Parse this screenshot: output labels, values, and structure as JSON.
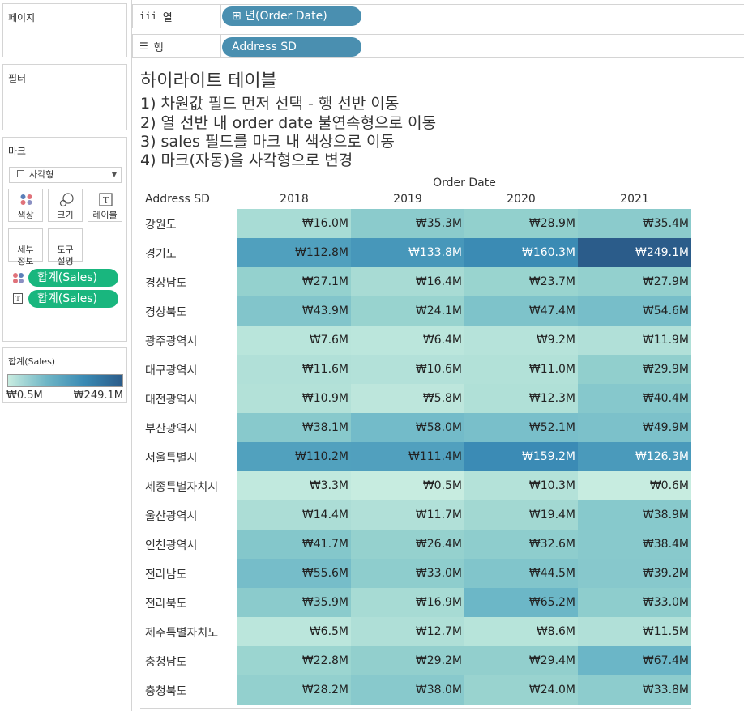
{
  "sidebar": {
    "pages_title": "페이지",
    "filters_title": "필터",
    "marks_title": "마크",
    "mark_type": "사각형",
    "mark_buttons": [
      {
        "label": "색상",
        "icon": "color-dots-icon"
      },
      {
        "label": "크기",
        "icon": "size-circles-icon"
      },
      {
        "label": "레이블",
        "icon": "text-label-icon"
      },
      {
        "label": "세부\n정보",
        "icon": "detail-icon"
      },
      {
        "label": "도구\n설명",
        "icon": "tooltip-icon"
      }
    ],
    "mark_fields": [
      {
        "icon": "color-dots-icon",
        "label": "합계(Sales)"
      },
      {
        "icon": "text-T-icon",
        "label": "합계(Sales)"
      }
    ],
    "legend": {
      "title": "합계(Sales)",
      "min_label": "₩0.5M",
      "max_label": "₩249.1M",
      "color_low": "#c8ece0",
      "color_high": "#2b5c8a"
    }
  },
  "shelves": {
    "columns_label": "열",
    "columns_icon": "iii",
    "columns_pill": "⊞ 년(Order Date)",
    "rows_label": "행",
    "rows_icon": "☰",
    "rows_pill": "Address SD"
  },
  "view": {
    "title": "하이라이트 테이블",
    "instructions": [
      "1) 차원값 필드 먼저 선택 - 행 선반 이동",
      "2) 열 선반 내 order date 불연속형으로 이동",
      "3) sales 필드를 마크 내 색상으로 이동",
      "4) 마크(자동)을 사각형으로 변경"
    ],
    "column_header": "Order Date",
    "row_header": "Address SD",
    "years": [
      "2018",
      "2019",
      "2020",
      "2021"
    ],
    "rows": [
      {
        "region": "강원도",
        "values": [
          16.0,
          35.3,
          28.9,
          35.4
        ],
        "labels": [
          "₩16.0M",
          "₩35.3M",
          "₩28.9M",
          "₩35.4M"
        ]
      },
      {
        "region": "경기도",
        "values": [
          112.8,
          133.8,
          160.3,
          249.1
        ],
        "labels": [
          "₩112.8M",
          "₩133.8M",
          "₩160.3M",
          "₩249.1M"
        ]
      },
      {
        "region": "경상남도",
        "values": [
          27.1,
          16.4,
          23.7,
          27.9
        ],
        "labels": [
          "₩27.1M",
          "₩16.4M",
          "₩23.7M",
          "₩27.9M"
        ]
      },
      {
        "region": "경상북도",
        "values": [
          43.9,
          24.1,
          47.4,
          54.6
        ],
        "labels": [
          "₩43.9M",
          "₩24.1M",
          "₩47.4M",
          "₩54.6M"
        ]
      },
      {
        "region": "광주광역시",
        "values": [
          7.6,
          6.4,
          9.2,
          11.9
        ],
        "labels": [
          "₩7.6M",
          "₩6.4M",
          "₩9.2M",
          "₩11.9M"
        ]
      },
      {
        "region": "대구광역시",
        "values": [
          11.6,
          10.6,
          11.0,
          29.9
        ],
        "labels": [
          "₩11.6M",
          "₩10.6M",
          "₩11.0M",
          "₩29.9M"
        ]
      },
      {
        "region": "대전광역시",
        "values": [
          10.9,
          5.8,
          12.3,
          40.4
        ],
        "labels": [
          "₩10.9M",
          "₩5.8M",
          "₩12.3M",
          "₩40.4M"
        ]
      },
      {
        "region": "부산광역시",
        "values": [
          38.1,
          58.0,
          52.1,
          49.9
        ],
        "labels": [
          "₩38.1M",
          "₩58.0M",
          "₩52.1M",
          "₩49.9M"
        ]
      },
      {
        "region": "서울특별시",
        "values": [
          110.2,
          111.4,
          159.2,
          126.3
        ],
        "labels": [
          "₩110.2M",
          "₩111.4M",
          "₩159.2M",
          "₩126.3M"
        ]
      },
      {
        "region": "세종특별자치시",
        "values": [
          3.3,
          0.5,
          10.3,
          0.6
        ],
        "labels": [
          "₩3.3M",
          "₩0.5M",
          "₩10.3M",
          "₩0.6M"
        ]
      },
      {
        "region": "울산광역시",
        "values": [
          14.4,
          11.7,
          19.4,
          38.9
        ],
        "labels": [
          "₩14.4M",
          "₩11.7M",
          "₩19.4M",
          "₩38.9M"
        ]
      },
      {
        "region": "인천광역시",
        "values": [
          41.7,
          26.4,
          32.6,
          38.4
        ],
        "labels": [
          "₩41.7M",
          "₩26.4M",
          "₩32.6M",
          "₩38.4M"
        ]
      },
      {
        "region": "전라남도",
        "values": [
          55.6,
          33.0,
          44.5,
          39.2
        ],
        "labels": [
          "₩55.6M",
          "₩33.0M",
          "₩44.5M",
          "₩39.2M"
        ]
      },
      {
        "region": "전라북도",
        "values": [
          35.9,
          16.9,
          65.2,
          33.0
        ],
        "labels": [
          "₩35.9M",
          "₩16.9M",
          "₩65.2M",
          "₩33.0M"
        ]
      },
      {
        "region": "제주특별자치도",
        "values": [
          6.5,
          12.7,
          8.6,
          11.5
        ],
        "labels": [
          "₩6.5M",
          "₩12.7M",
          "₩8.6M",
          "₩11.5M"
        ]
      },
      {
        "region": "충청남도",
        "values": [
          22.8,
          29.2,
          29.4,
          67.4
        ],
        "labels": [
          "₩22.8M",
          "₩29.2M",
          "₩29.4M",
          "₩67.4M"
        ]
      },
      {
        "region": "충청북도",
        "values": [
          28.2,
          38.0,
          24.0,
          33.8
        ],
        "labels": [
          "₩28.2M",
          "₩38.0M",
          "₩24.0M",
          "₩33.8M"
        ]
      }
    ]
  }
}
